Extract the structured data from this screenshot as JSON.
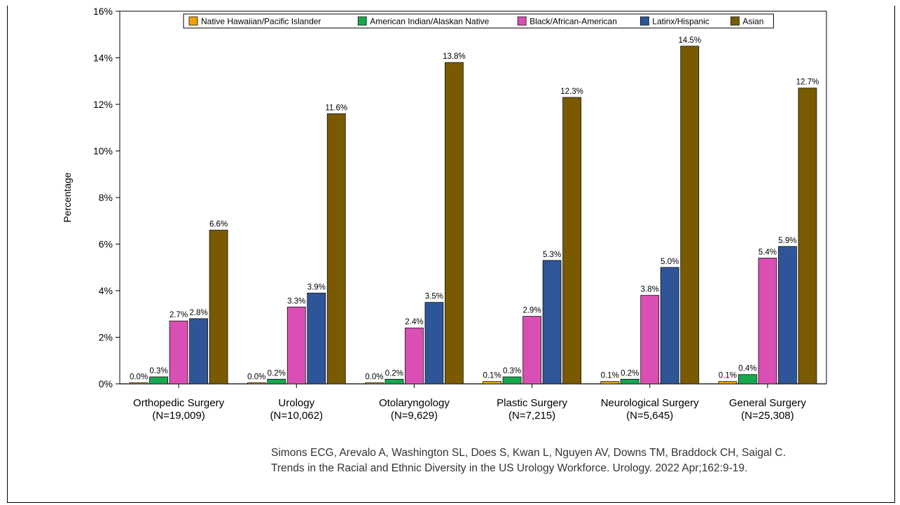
{
  "chart_data": {
    "type": "bar",
    "ylabel": "Percentage",
    "xlabel": "",
    "ylim": [
      0,
      16
    ],
    "y_ticks": [
      "0%",
      "2%",
      "4%",
      "6%",
      "8%",
      "10%",
      "12%",
      "14%",
      "16%"
    ],
    "y_tick_values": [
      0,
      2,
      4,
      6,
      8,
      10,
      12,
      14,
      16
    ],
    "grid": false,
    "legend_position": "top",
    "categories": [
      {
        "line1": "Orthopedic Surgery",
        "line2": "(N=19,009)"
      },
      {
        "line1": "Urology",
        "line2": "(N=10,062)"
      },
      {
        "line1": "Otolaryngology",
        "line2": "(N=9,629)"
      },
      {
        "line1": "Plastic Surgery",
        "line2": "(N=7,215)"
      },
      {
        "line1": "Neurological Surgery",
        "line2": "(N=5,645)"
      },
      {
        "line1": "General Surgery",
        "line2": "(N=25,308)"
      }
    ],
    "series": [
      {
        "name": "Native Hawaiian/Pacific Islander",
        "color": "#f0a000",
        "values": [
          0.0,
          0.0,
          0.0,
          0.1,
          0.1,
          0.1
        ],
        "labels": [
          "0.0%",
          "0.0%",
          "0.0%",
          "0.1%",
          "0.1%",
          "0.1%"
        ]
      },
      {
        "name": "American Indian/Alaskan Native",
        "color": "#16a84e",
        "values": [
          0.3,
          0.2,
          0.2,
          0.3,
          0.2,
          0.4
        ],
        "labels": [
          "0.3%",
          "0.2%",
          "0.2%",
          "0.3%",
          "0.2%",
          "0.4%"
        ]
      },
      {
        "name": "Black/African-American",
        "color": "#d94fb4",
        "values": [
          2.7,
          3.3,
          2.4,
          2.9,
          3.8,
          5.4
        ],
        "labels": [
          "2.7%",
          "3.3%",
          "2.4%",
          "2.9%",
          "3.8%",
          "5.4%"
        ]
      },
      {
        "name": "Latinx/Hispanic",
        "color": "#2e5597",
        "values": [
          2.8,
          3.9,
          3.5,
          5.3,
          5.0,
          5.9
        ],
        "labels": [
          "2.8%",
          "3.9%",
          "3.5%",
          "5.3%",
          "5.0%",
          "5.9%"
        ]
      },
      {
        "name": "Asian",
        "color": "#7a5a00",
        "values": [
          6.6,
          11.6,
          13.8,
          12.3,
          14.5,
          12.7
        ],
        "labels": [
          "6.6%",
          "11.6%",
          "13.8%",
          "12.3%",
          "14.5%",
          "12.7%"
        ]
      }
    ]
  },
  "citation": {
    "line1": "Simons ECG, Arevalo A, Washington SL, Does S, Kwan L, Nguyen AV, Downs TM, Braddock CH, Saigal C.",
    "line2": "Trends in the Racial and Ethnic Diversity in the US Urology Workforce. Urology. 2022 Apr;162:9-19."
  }
}
